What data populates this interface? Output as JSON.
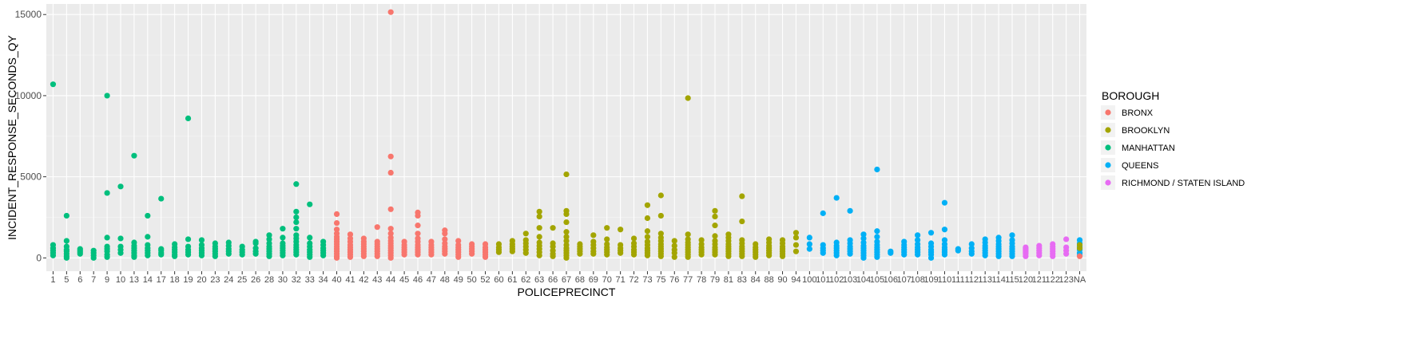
{
  "chart_data": {
    "type": "scatter",
    "xlabel": "POLICEPRECINCT",
    "ylabel": "INCIDENT_RESPONSE_SECONDS_QY",
    "ylim": [
      -820,
      15650
    ],
    "yticks": [
      0,
      5000,
      10000,
      15000
    ],
    "grid": true,
    "legend": {
      "title": "BOROUGH",
      "placement": "right",
      "entries": [
        {
          "key": "BRONX",
          "label": "BRONX",
          "color": "#F8766D"
        },
        {
          "key": "BROOKLYN",
          "label": "BROOKLYN",
          "color": "#A3A500"
        },
        {
          "key": "MANHATTAN",
          "label": "MANHATTAN",
          "color": "#00BF7D"
        },
        {
          "key": "QUEENS",
          "label": "QUEENS",
          "color": "#00B0F6"
        },
        {
          "key": "RICHMOND",
          "label": "RICHMOND / STATEN ISLAND",
          "color": "#E76BF3"
        }
      ]
    },
    "categories": [
      "1",
      "5",
      "6",
      "7",
      "9",
      "10",
      "13",
      "14",
      "17",
      "18",
      "19",
      "20",
      "23",
      "24",
      "25",
      "26",
      "28",
      "30",
      "32",
      "33",
      "34",
      "40",
      "41",
      "42",
      "43",
      "44",
      "45",
      "46",
      "47",
      "48",
      "49",
      "50",
      "52",
      "60",
      "61",
      "62",
      "63",
      "66",
      "67",
      "68",
      "69",
      "70",
      "71",
      "72",
      "73",
      "75",
      "76",
      "77",
      "78",
      "79",
      "81",
      "83",
      "84",
      "88",
      "90",
      "94",
      "100",
      "101",
      "102",
      "103",
      "104",
      "105",
      "106",
      "107",
      "108",
      "109",
      "110",
      "111",
      "112",
      "113",
      "114",
      "115",
      "120",
      "121",
      "122",
      "123",
      "NA"
    ],
    "points": [
      {
        "x": "1",
        "b": "MANHATTAN",
        "y": [
          10700,
          800,
          600,
          450,
          300,
          150
        ]
      },
      {
        "x": "5",
        "b": "MANHATTAN",
        "y": [
          2600,
          1050,
          700,
          500,
          400,
          250,
          100,
          0
        ]
      },
      {
        "x": "6",
        "b": "MANHATTAN",
        "y": [
          550,
          450,
          350,
          250
        ]
      },
      {
        "x": "7",
        "b": "MANHATTAN",
        "y": [
          450,
          300,
          150,
          0
        ]
      },
      {
        "x": "9",
        "b": "MANHATTAN",
        "y": [
          10000,
          4000,
          1250,
          700,
          550,
          400,
          200,
          50
        ]
      },
      {
        "x": "10",
        "b": "MANHATTAN",
        "y": [
          4400,
          1200,
          700,
          500,
          300
        ]
      },
      {
        "x": "13",
        "b": "MANHATTAN",
        "y": [
          6300,
          950,
          750,
          600,
          450,
          300,
          150,
          50
        ]
      },
      {
        "x": "14",
        "b": "MANHATTAN",
        "y": [
          2600,
          1300,
          800,
          600,
          450,
          300,
          150
        ]
      },
      {
        "x": "17",
        "b": "MANHATTAN",
        "y": [
          3650,
          550,
          450,
          300,
          200
        ]
      },
      {
        "x": "18",
        "b": "MANHATTAN",
        "y": [
          850,
          650,
          500,
          350,
          200,
          100
        ]
      },
      {
        "x": "19",
        "b": "MANHATTAN",
        "y": [
          8600,
          1150,
          700,
          500,
          350,
          200
        ]
      },
      {
        "x": "20",
        "b": "MANHATTAN",
        "y": [
          1100,
          800,
          600,
          450,
          300,
          150
        ]
      },
      {
        "x": "23",
        "b": "MANHATTAN",
        "y": [
          900,
          700,
          550,
          400,
          250,
          100
        ]
      },
      {
        "x": "24",
        "b": "MANHATTAN",
        "y": [
          950,
          750,
          550,
          400,
          250
        ]
      },
      {
        "x": "25",
        "b": "MANHATTAN",
        "y": [
          700,
          500,
          350,
          200
        ]
      },
      {
        "x": "26",
        "b": "MANHATTAN",
        "y": [
          1000,
          900,
          600,
          400,
          250
        ]
      },
      {
        "x": "28",
        "b": "MANHATTAN",
        "y": [
          1400,
          1150,
          900,
          700,
          550,
          400,
          250,
          100
        ]
      },
      {
        "x": "30",
        "b": "MANHATTAN",
        "y": [
          1800,
          1250,
          900,
          750,
          600,
          450,
          300,
          150
        ]
      },
      {
        "x": "32",
        "b": "MANHATTAN",
        "y": [
          4550,
          2850,
          2500,
          2200,
          1800,
          1400,
          1200,
          1000,
          800,
          650,
          500,
          350,
          200
        ]
      },
      {
        "x": "33",
        "b": "MANHATTAN",
        "y": [
          3300,
          1250,
          900,
          700,
          500,
          350,
          200,
          50
        ]
      },
      {
        "x": "34",
        "b": "MANHATTAN",
        "y": [
          1000,
          800,
          600,
          450,
          300,
          150
        ]
      },
      {
        "x": "40",
        "b": "BRONX",
        "y": [
          2700,
          2150,
          1750,
          1500,
          1300,
          1150,
          1000,
          850,
          700,
          550,
          400,
          250,
          100,
          0
        ]
      },
      {
        "x": "41",
        "b": "BRONX",
        "y": [
          1450,
          1200,
          1000,
          800,
          650,
          500,
          350,
          200,
          50
        ]
      },
      {
        "x": "42",
        "b": "BRONX",
        "y": [
          1200,
          1000,
          850,
          700,
          550,
          400,
          250,
          100
        ]
      },
      {
        "x": "43",
        "b": "BRONX",
        "y": [
          1900,
          1000,
          850,
          700,
          550,
          400,
          250,
          100
        ]
      },
      {
        "x": "44",
        "b": "BRONX",
        "y": [
          15150,
          6250,
          5250,
          3000,
          1800,
          1500,
          1250,
          1050,
          900,
          750,
          600,
          450,
          300,
          150,
          0
        ]
      },
      {
        "x": "45",
        "b": "BRONX",
        "y": [
          1000,
          800,
          650,
          500,
          350,
          200
        ]
      },
      {
        "x": "46",
        "b": "BRONX",
        "y": [
          2800,
          2600,
          2000,
          1500,
          1200,
          1000,
          800,
          650,
          500,
          350,
          200
        ]
      },
      {
        "x": "47",
        "b": "BRONX",
        "y": [
          1000,
          800,
          650,
          500,
          350,
          200
        ]
      },
      {
        "x": "48",
        "b": "BRONX",
        "y": [
          1700,
          1500,
          1150,
          900,
          700,
          550,
          400,
          250
        ]
      },
      {
        "x": "49",
        "b": "BRONX",
        "y": [
          1050,
          800,
          650,
          500,
          350,
          200,
          50
        ]
      },
      {
        "x": "50",
        "b": "BRONX",
        "y": [
          850,
          700,
          550,
          400,
          250
        ]
      },
      {
        "x": "52",
        "b": "BRONX",
        "y": [
          850,
          650,
          500,
          350,
          200,
          50
        ]
      },
      {
        "x": "60",
        "b": "BROOKLYN",
        "y": [
          850,
          650,
          500,
          350
        ]
      },
      {
        "x": "61",
        "b": "BROOKLYN",
        "y": [
          1050,
          850,
          700,
          550,
          400
        ]
      },
      {
        "x": "62",
        "b": "BROOKLYN",
        "y": [
          1500,
          1100,
          900,
          700,
          500,
          300
        ]
      },
      {
        "x": "63",
        "b": "BROOKLYN",
        "y": [
          2850,
          2550,
          1850,
          1300,
          950,
          750,
          550,
          350,
          150
        ]
      },
      {
        "x": "66",
        "b": "BROOKLYN",
        "y": [
          1850,
          900,
          700,
          450,
          250,
          100
        ]
      },
      {
        "x": "67",
        "b": "BROOKLYN",
        "y": [
          5150,
          2900,
          2700,
          2200,
          1600,
          1300,
          1050,
          800,
          600,
          450,
          300,
          150,
          0
        ]
      },
      {
        "x": "68",
        "b": "BROOKLYN",
        "y": [
          850,
          700,
          550,
          400,
          250
        ]
      },
      {
        "x": "69",
        "b": "BROOKLYN",
        "y": [
          1400,
          1000,
          800,
          600,
          400,
          250
        ]
      },
      {
        "x": "70",
        "b": "BROOKLYN",
        "y": [
          1850,
          1150,
          850,
          650,
          500,
          350,
          200
        ]
      },
      {
        "x": "71",
        "b": "BROOKLYN",
        "y": [
          1750,
          800,
          600,
          450,
          300
        ]
      },
      {
        "x": "72",
        "b": "BROOKLYN",
        "y": [
          1200,
          900,
          700,
          500,
          350,
          200
        ]
      },
      {
        "x": "73",
        "b": "BROOKLYN",
        "y": [
          3250,
          2450,
          1650,
          1300,
          1000,
          800,
          600,
          450,
          300,
          150
        ]
      },
      {
        "x": "75",
        "b": "BROOKLYN",
        "y": [
          3850,
          2600,
          1500,
          1250,
          1050,
          850,
          700,
          550,
          400,
          250,
          100
        ]
      },
      {
        "x": "76",
        "b": "BROOKLYN",
        "y": [
          1050,
          750,
          500,
          300,
          50
        ]
      },
      {
        "x": "77",
        "b": "BROOKLYN",
        "y": [
          9850,
          1450,
          1150,
          950,
          800,
          650,
          500,
          350,
          200,
          50
        ]
      },
      {
        "x": "78",
        "b": "BROOKLYN",
        "y": [
          1100,
          850,
          650,
          500,
          350,
          200
        ]
      },
      {
        "x": "79",
        "b": "BROOKLYN",
        "y": [
          2900,
          2550,
          2000,
          1350,
          1050,
          850,
          650,
          500,
          350,
          200
        ]
      },
      {
        "x": "81",
        "b": "BROOKLYN",
        "y": [
          1450,
          1250,
          1050,
          850,
          700,
          550,
          400,
          250,
          100
        ]
      },
      {
        "x": "83",
        "b": "BROOKLYN",
        "y": [
          3800,
          2250,
          1100,
          900,
          700,
          550,
          400,
          250,
          100
        ]
      },
      {
        "x": "84",
        "b": "BROOKLYN",
        "y": [
          850,
          650,
          500,
          350,
          200,
          50
        ]
      },
      {
        "x": "88",
        "b": "BROOKLYN",
        "y": [
          1150,
          950,
          750,
          600,
          450,
          300,
          150
        ]
      },
      {
        "x": "90",
        "b": "BROOKLYN",
        "y": [
          1100,
          900,
          700,
          550,
          400,
          250,
          100
        ]
      },
      {
        "x": "94",
        "b": "BROOKLYN",
        "y": [
          1550,
          1250,
          800,
          400
        ]
      },
      {
        "x": "100",
        "b": "QUEENS",
        "y": [
          1250,
          850,
          550
        ]
      },
      {
        "x": "101",
        "b": "QUEENS",
        "y": [
          2750,
          800,
          600,
          450,
          300
        ]
      },
      {
        "x": "102",
        "b": "QUEENS",
        "y": [
          3700,
          950,
          750,
          600,
          450,
          300,
          150
        ]
      },
      {
        "x": "103",
        "b": "QUEENS",
        "y": [
          2900,
          1100,
          900,
          700,
          550,
          400,
          250
        ]
      },
      {
        "x": "104",
        "b": "QUEENS",
        "y": [
          1450,
          1200,
          950,
          750,
          600,
          450,
          300,
          150,
          0
        ]
      },
      {
        "x": "105",
        "b": "QUEENS",
        "y": [
          5450,
          1650,
          1300,
          1000,
          800,
          650,
          500,
          350,
          200,
          50
        ]
      },
      {
        "x": "106",
        "b": "QUEENS",
        "y": [
          400,
          300
        ]
      },
      {
        "x": "107",
        "b": "QUEENS",
        "y": [
          1000,
          800,
          650,
          500,
          350,
          200
        ]
      },
      {
        "x": "108",
        "b": "QUEENS",
        "y": [
          1400,
          1100,
          850,
          650,
          500,
          350,
          200
        ]
      },
      {
        "x": "109",
        "b": "QUEENS",
        "y": [
          1550,
          900,
          700,
          500,
          350,
          200,
          0
        ]
      },
      {
        "x": "110",
        "b": "QUEENS",
        "y": [
          3400,
          1750,
          1100,
          850,
          650,
          500,
          350,
          200
        ]
      },
      {
        "x": "111",
        "b": "QUEENS",
        "y": [
          550,
          450
        ]
      },
      {
        "x": "112",
        "b": "QUEENS",
        "y": [
          850,
          600,
          400,
          250
        ]
      },
      {
        "x": "113",
        "b": "QUEENS",
        "y": [
          1150,
          950,
          750,
          600,
          450,
          300,
          150
        ]
      },
      {
        "x": "114",
        "b": "QUEENS",
        "y": [
          1250,
          1050,
          850,
          700,
          550,
          400,
          250,
          100
        ]
      },
      {
        "x": "115",
        "b": "QUEENS",
        "y": [
          1400,
          1100,
          900,
          700,
          550,
          400,
          250,
          100
        ]
      },
      {
        "x": "120",
        "b": "RICHMOND",
        "y": [
          650,
          550,
          450,
          350,
          250,
          100
        ]
      },
      {
        "x": "121",
        "b": "RICHMOND",
        "y": [
          750,
          600,
          450,
          300,
          150
        ]
      },
      {
        "x": "122",
        "b": "RICHMOND",
        "y": [
          850,
          700,
          550,
          400,
          250,
          100
        ]
      },
      {
        "x": "123",
        "b": "RICHMOND",
        "y": [
          1150,
          650,
          450,
          250
        ]
      },
      {
        "x": "NA",
        "b": "QUEENS",
        "y": [
          1100,
          900,
          700,
          500,
          300,
          150
        ]
      },
      {
        "x": "NA",
        "b": "BROOKLYN",
        "y": [
          800,
          600
        ]
      },
      {
        "x": "NA",
        "b": "BRONX",
        "y": [
          100
        ]
      }
    ]
  }
}
